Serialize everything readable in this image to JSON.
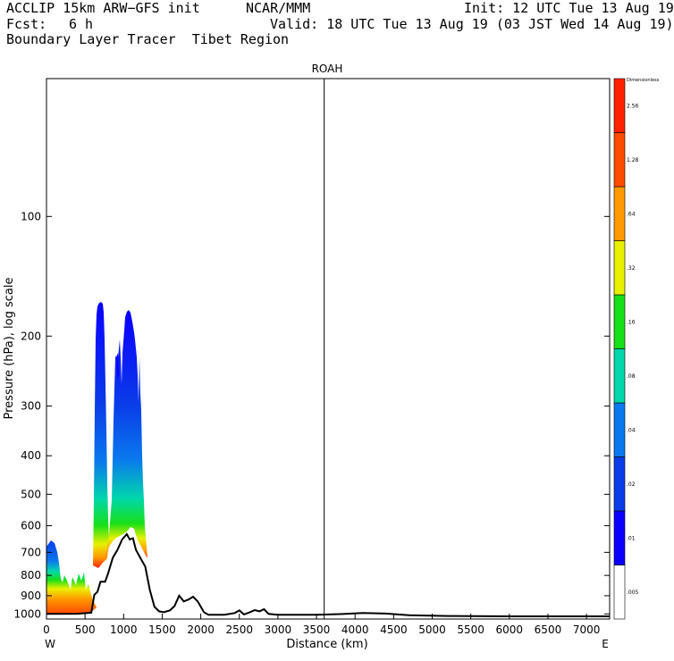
{
  "header": {
    "model": "ACCLIP 15km ARW−GFS init",
    "org": "NCAR/MMM",
    "init": "Init: 12 UTC Tue 13 Aug 19",
    "fcst_label": "Fcst:",
    "fcst_value": "6 h",
    "valid": "Valid: 18 UTC Tue 13 Aug 19 (03 JST Wed 14 Aug 19)",
    "subtitle": "Boundary Layer Tracer  Tibet Region"
  },
  "chart_data": {
    "type": "cross-section",
    "title": "ROAH",
    "xlabel": "Distance (km)",
    "ylabel": "Pressure (hPa), log scale",
    "x_left_label": "W",
    "x_right_label": "E",
    "xlim": [
      0,
      7300
    ],
    "ylim": [
      1030,
      45
    ],
    "x_ticks": [
      0,
      500,
      1000,
      1500,
      2000,
      2500,
      3000,
      3500,
      4000,
      4500,
      5000,
      5500,
      6000,
      6500,
      7000
    ],
    "y_ticks": [
      1000,
      900,
      800,
      700,
      600,
      500,
      400,
      300,
      200,
      100
    ],
    "vertical_marker_km": 3600,
    "colorbar": {
      "unit_label": "Dimensionless",
      "levels": [
        ".005",
        ".01",
        ".02",
        ".04",
        ".08",
        ".16",
        ".32",
        ".64",
        "1.28",
        "2.56"
      ],
      "colors": [
        "#ffffff",
        "#0a00ff",
        "#0a3ce8",
        "#0a78ee",
        "#00d7ab",
        "#18e018",
        "#e8f000",
        "#ff9900",
        "#ff4b00",
        "#ff2200"
      ]
    },
    "terrain_km_hpa": [
      [
        0,
        1000
      ],
      [
        400,
        999
      ],
      [
        580,
        993
      ],
      [
        620,
        895
      ],
      [
        660,
        880
      ],
      [
        700,
        830
      ],
      [
        760,
        830
      ],
      [
        800,
        790
      ],
      [
        860,
        722
      ],
      [
        920,
        690
      ],
      [
        980,
        650
      ],
      [
        1040,
        630
      ],
      [
        1080,
        650
      ],
      [
        1120,
        645
      ],
      [
        1160,
        690
      ],
      [
        1220,
        725
      ],
      [
        1280,
        760
      ],
      [
        1340,
        870
      ],
      [
        1400,
        960
      ],
      [
        1460,
        985
      ],
      [
        1520,
        990
      ],
      [
        1600,
        980
      ],
      [
        1660,
        955
      ],
      [
        1720,
        900
      ],
      [
        1780,
        930
      ],
      [
        1840,
        920
      ],
      [
        1900,
        905
      ],
      [
        1960,
        930
      ],
      [
        2040,
        990
      ],
      [
        2100,
        1005
      ],
      [
        2300,
        1005
      ],
      [
        2440,
        995
      ],
      [
        2500,
        980
      ],
      [
        2560,
        1003
      ],
      [
        2640,
        990
      ],
      [
        2700,
        978
      ],
      [
        2760,
        985
      ],
      [
        2820,
        973
      ],
      [
        2880,
        1000
      ],
      [
        3000,
        1005
      ],
      [
        3500,
        1005
      ],
      [
        3800,
        1001
      ],
      [
        4100,
        995
      ],
      [
        4400,
        998
      ],
      [
        4700,
        1008
      ],
      [
        5200,
        1012
      ],
      [
        6000,
        1014
      ],
      [
        7300,
        1014
      ]
    ],
    "tracer_regions": [
      {
        "name": "west-low",
        "x": [
          0,
          580
        ],
        "top_hpa": 690,
        "max_value": 2.56
      },
      {
        "name": "plume-1",
        "x": [
          640,
          780
        ],
        "top_hpa": 175,
        "max_value": 0.64
      },
      {
        "name": "plume-2",
        "x": [
          800,
          1290
        ],
        "top_hpa": 185,
        "max_value": 1.28
      }
    ]
  }
}
